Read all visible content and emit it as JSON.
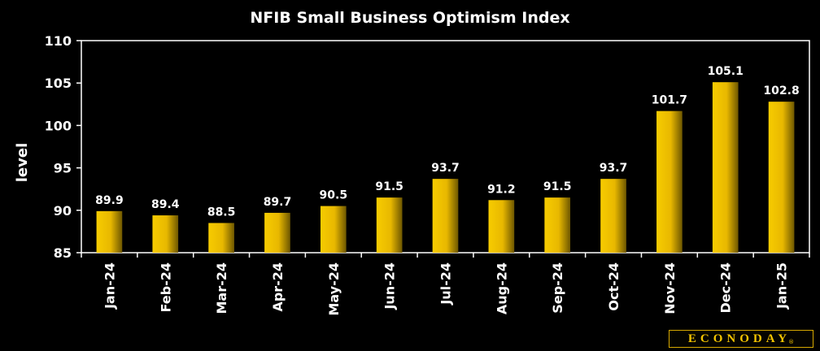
{
  "chart_data": {
    "type": "bar",
    "title": "NFIB Small Business Optimism Index",
    "ylabel": "level",
    "xlabel": "",
    "categories": [
      "Jan-24",
      "Feb-24",
      "Mar-24",
      "Apr-24",
      "May-24",
      "Jun-24",
      "Jul-24",
      "Aug-24",
      "Sep-24",
      "Oct-24",
      "Nov-24",
      "Dec-24",
      "Jan-25"
    ],
    "values": [
      89.9,
      89.4,
      88.5,
      89.7,
      90.5,
      91.5,
      93.7,
      91.2,
      91.5,
      93.7,
      101.7,
      105.1,
      102.8
    ],
    "value_labels": [
      "89.9",
      "89.4",
      "88.5",
      "89.7",
      "90.5",
      "91.5",
      "93.7",
      "91.2",
      "91.5",
      "93.7",
      "101.7",
      "105.1",
      "102.8"
    ],
    "ylim": [
      85,
      110
    ],
    "yticks": [
      "85",
      "90",
      "95",
      "100",
      "105",
      "110"
    ],
    "grid": false,
    "legend": "none",
    "colors": {
      "bar": "#f2c200",
      "bar_dark": "#6e5700",
      "text": "#ffffff",
      "background": "#000000"
    }
  },
  "branding": {
    "logo_text": "ECONODAY",
    "logo_mark": "®"
  }
}
